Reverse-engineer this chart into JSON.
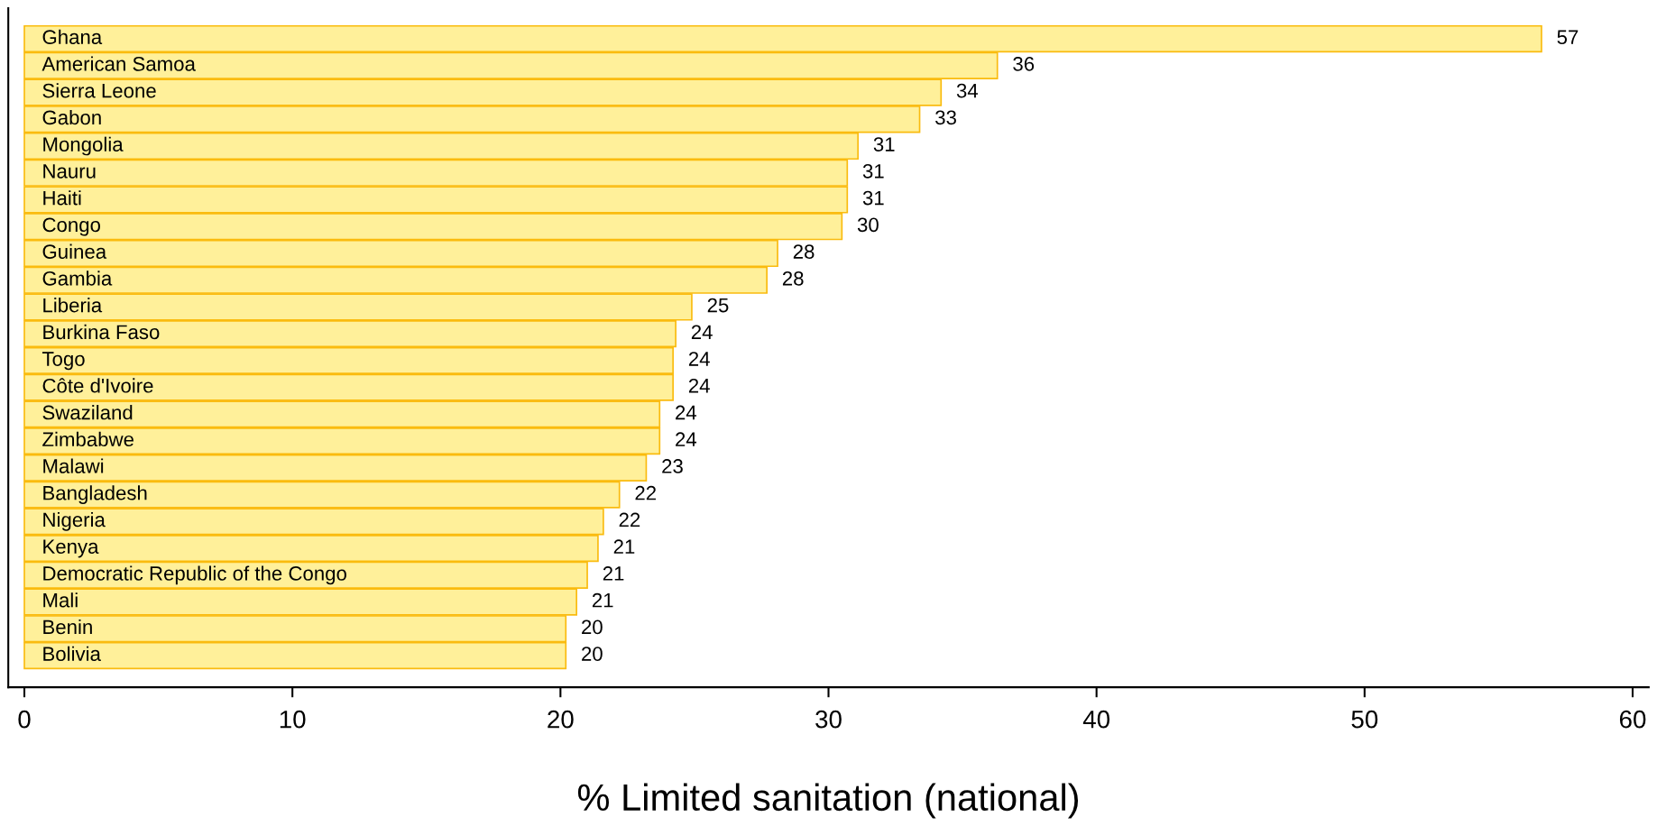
{
  "chart_data": {
    "type": "bar",
    "orientation": "horizontal",
    "xlabel": "% Limited sanitation (national)",
    "categories": [
      "Ghana",
      "American Samoa",
      "Sierra Leone",
      "Gabon",
      "Mongolia",
      "Nauru",
      "Haiti",
      "Congo",
      "Guinea",
      "Gambia",
      "Liberia",
      "Burkina Faso",
      "Togo",
      "Côte d'Ivoire",
      "Swaziland",
      "Zimbabwe",
      "Malawi",
      "Bangladesh",
      "Nigeria",
      "Kenya",
      "Democratic Republic of the Congo",
      "Mali",
      "Benin",
      "Bolivia"
    ],
    "values": [
      56.6,
      36.3,
      34.2,
      33.4,
      31.1,
      30.7,
      30.7,
      30.5,
      28.1,
      27.7,
      24.9,
      24.3,
      24.2,
      24.2,
      23.7,
      23.7,
      23.2,
      22.2,
      21.6,
      21.4,
      21.0,
      20.6,
      20.2,
      20.2
    ],
    "value_labels": [
      "57",
      "36",
      "34",
      "33",
      "31",
      "31",
      "31",
      "30",
      "28",
      "28",
      "25",
      "24",
      "24",
      "24",
      "24",
      "24",
      "23",
      "22",
      "22",
      "21",
      "21",
      "21",
      "20",
      "20"
    ],
    "color": "#fff09a",
    "xlim": [
      -0.6,
      60.6
    ],
    "xticks": [
      0,
      10,
      20,
      30,
      40,
      50,
      60
    ]
  }
}
